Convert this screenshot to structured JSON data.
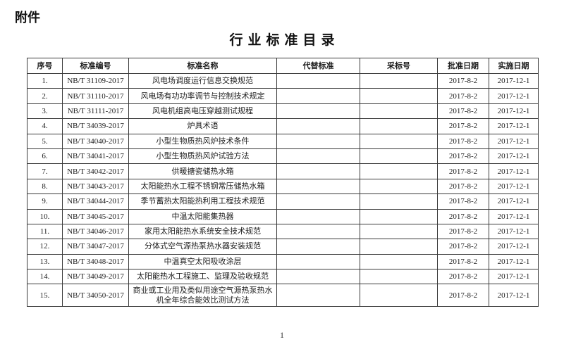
{
  "page": {
    "attachment_label": "附件",
    "title": "行业标准目录",
    "page_number": "1"
  },
  "table": {
    "headers": [
      "序号",
      "标准编号",
      "标准名称",
      "代替标准",
      "采标号",
      "批准日期",
      "实施日期"
    ],
    "rows": [
      {
        "num": "1.",
        "code": "NB/T 31109-2017",
        "name": "风电场调度运行信息交换规范",
        "replaced": "",
        "adoption": "",
        "approval": "2017-8-2",
        "implementation": "2017-12-1"
      },
      {
        "num": "2.",
        "code": "NB/T 31110-2017",
        "name": "风电场有功功率调节与控制技术规定",
        "replaced": "",
        "adoption": "",
        "approval": "2017-8-2",
        "implementation": "2017-12-1"
      },
      {
        "num": "3.",
        "code": "NB/T 31111-2017",
        "name": "风电机组高电压穿越测试规程",
        "replaced": "",
        "adoption": "",
        "approval": "2017-8-2",
        "implementation": "2017-12-1"
      },
      {
        "num": "4.",
        "code": "NB/T 34039-2017",
        "name": "炉具术语",
        "replaced": "",
        "adoption": "",
        "approval": "2017-8-2",
        "implementation": "2017-12-1"
      },
      {
        "num": "5.",
        "code": "NB/T 34040-2017",
        "name": "小型生物质热风炉技术条件",
        "replaced": "",
        "adoption": "",
        "approval": "2017-8-2",
        "implementation": "2017-12-1"
      },
      {
        "num": "6.",
        "code": "NB/T 34041-2017",
        "name": "小型生物质热风炉试验方法",
        "replaced": "",
        "adoption": "",
        "approval": "2017-8-2",
        "implementation": "2017-12-1"
      },
      {
        "num": "7.",
        "code": "NB/T 34042-2017",
        "name": "供暖搪瓷储热水箱",
        "replaced": "",
        "adoption": "",
        "approval": "2017-8-2",
        "implementation": "2017-12-1"
      },
      {
        "num": "8.",
        "code": "NB/T 34043-2017",
        "name": "太阳能热水工程不锈钢常压储热水箱",
        "replaced": "",
        "adoption": "",
        "approval": "2017-8-2",
        "implementation": "2017-12-1"
      },
      {
        "num": "9.",
        "code": "NB/T 34044-2017",
        "name": "季节蓄热太阳能热利用工程技术规范",
        "replaced": "",
        "adoption": "",
        "approval": "2017-8-2",
        "implementation": "2017-12-1"
      },
      {
        "num": "10.",
        "code": "NB/T 34045-2017",
        "name": "中温太阳能集热器",
        "replaced": "",
        "adoption": "",
        "approval": "2017-8-2",
        "implementation": "2017-12-1"
      },
      {
        "num": "11.",
        "code": "NB/T 34046-2017",
        "name": "家用太阳能热水系统安全技术规范",
        "replaced": "",
        "adoption": "",
        "approval": "2017-8-2",
        "implementation": "2017-12-1"
      },
      {
        "num": "12.",
        "code": "NB/T 34047-2017",
        "name": "分体式空气源热泵热水器安装规范",
        "replaced": "",
        "adoption": "",
        "approval": "2017-8-2",
        "implementation": "2017-12-1"
      },
      {
        "num": "13.",
        "code": "NB/T 34048-2017",
        "name": "中温真空太阳吸收涂层",
        "replaced": "",
        "adoption": "",
        "approval": "2017-8-2",
        "implementation": "2017-12-1"
      },
      {
        "num": "14.",
        "code": "NB/T 34049-2017",
        "name": "太阳能热水工程施工、监理及验收规范",
        "replaced": "",
        "adoption": "",
        "approval": "2017-8-2",
        "implementation": "2017-12-1"
      },
      {
        "num": "15.",
        "code": "NB/T 34050-2017",
        "name": "商业或工业用及类似用途空气源热泵热水机全年综合能效比测试方法",
        "replaced": "",
        "adoption": "",
        "approval": "2017-8-2",
        "implementation": "2017-12-1",
        "tall": true
      }
    ]
  }
}
